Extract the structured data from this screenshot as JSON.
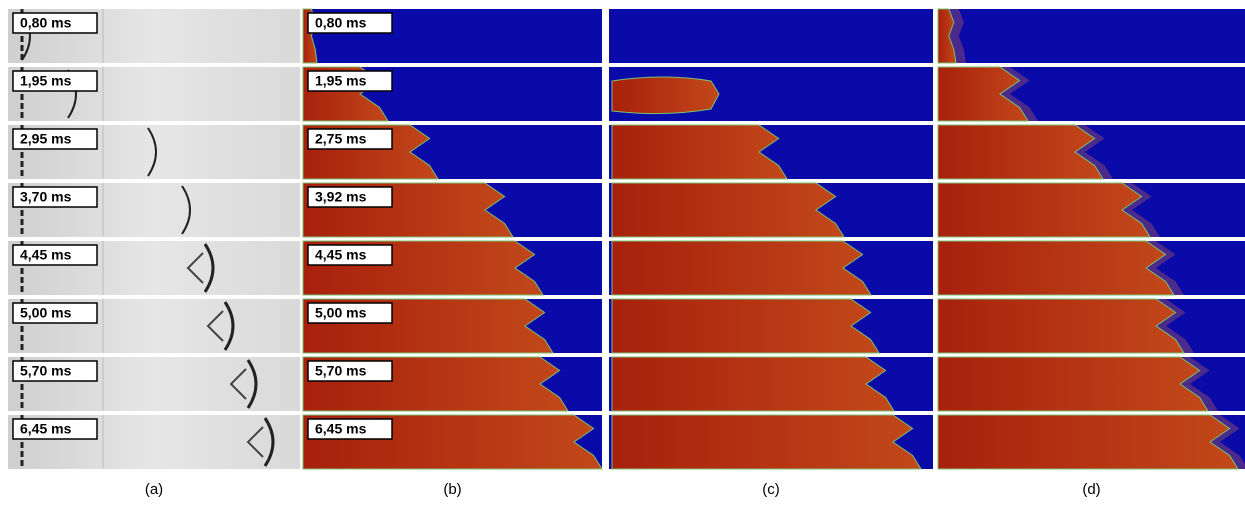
{
  "panels": [
    {
      "caption": "(a)",
      "time_labels": [
        "0,80 ms",
        "1,95 ms",
        "2,95 ms",
        "3,70 ms",
        "4,45 ms",
        "5,00 ms",
        "5,70 ms",
        "6,45 ms"
      ]
    },
    {
      "caption": "(b)",
      "time_labels": [
        "0,80 ms",
        "1,95 ms",
        "2,75 ms",
        "3,92 ms",
        "4,45 ms",
        "5,00 ms",
        "5,70 ms",
        "6,45 ms"
      ]
    },
    {
      "caption": "(c)"
    },
    {
      "caption": "(d)"
    }
  ]
}
